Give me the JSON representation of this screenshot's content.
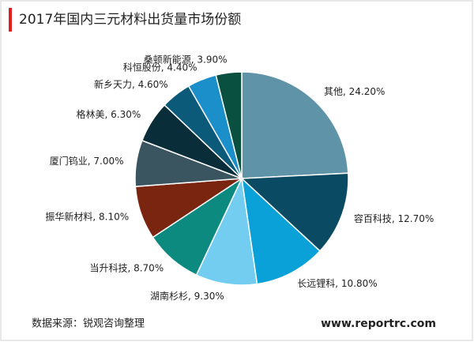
{
  "chart_data": {
    "type": "pie",
    "title": "2017年国内三元材料出货量市场份额",
    "values": [
      24.2,
      12.7,
      10.8,
      9.3,
      8.7,
      8.1,
      7.0,
      6.3,
      4.6,
      4.4,
      3.9
    ],
    "value_labels": [
      "其他, 24.20%",
      "容百科技, 12.70%",
      "长远锂科, 10.80%",
      "湖南杉杉, 9.30%",
      "当升科技, 8.70%",
      "振华新材料, 8.10%",
      "厦门钨业, 7.00%",
      "格林美, 6.30%",
      "新乡天力, 4.60%",
      "科恒股份, 4.40%",
      "桑顿新能源, 3.90%"
    ],
    "colors": [
      "#5f93a8",
      "#0b4a63",
      "#0aa0d8",
      "#72cdf0",
      "#0c8a7f",
      "#7a2510",
      "#3a5560",
      "#0a2d3a",
      "#0b5a7a",
      "#1a8fc9",
      "#0a5040"
    ],
    "source": "数据来源：锐观咨询整理",
    "website": "www.reportrc.com"
  }
}
